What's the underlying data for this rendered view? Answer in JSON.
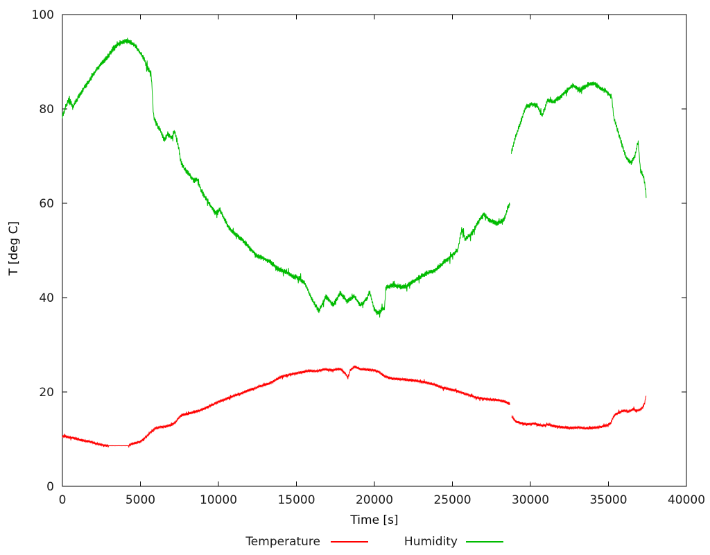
{
  "chart_data": {
    "type": "line",
    "title": "",
    "xlabel": "Time [s]",
    "ylabel": "T [deg C]",
    "xlim": [
      0,
      40000
    ],
    "ylim": [
      0,
      100
    ],
    "x_ticks": [
      0,
      5000,
      10000,
      15000,
      20000,
      25000,
      30000,
      35000,
      40000
    ],
    "y_ticks": [
      0,
      20,
      40,
      60,
      80,
      100
    ],
    "grid": false,
    "legend_position": "below-center",
    "axis_color": "#000000",
    "series": [
      {
        "name": "Temperature",
        "color": "#ff0000",
        "noise": 0.3,
        "segments": [
          {
            "quiet": [
              2950,
              4250
            ],
            "points": [
              [
                0,
                10.6
              ],
              [
                300,
                10.5
              ],
              [
                600,
                10.3
              ],
              [
                900,
                10.1
              ],
              [
                1200,
                9.8
              ],
              [
                1500,
                9.6
              ],
              [
                1800,
                9.4
              ],
              [
                2100,
                9.1
              ],
              [
                2400,
                8.9
              ],
              [
                2700,
                8.7
              ],
              [
                2950,
                8.6
              ],
              [
                4250,
                8.6
              ],
              [
                4450,
                9.0
              ],
              [
                4700,
                9.2
              ],
              [
                4950,
                9.4
              ],
              [
                5200,
                10.0
              ],
              [
                5450,
                10.8
              ],
              [
                5700,
                11.6
              ],
              [
                5950,
                12.3
              ],
              [
                6200,
                12.5
              ],
              [
                6600,
                12.7
              ],
              [
                7000,
                13.0
              ],
              [
                7250,
                13.6
              ],
              [
                7450,
                14.5
              ],
              [
                7650,
                15.1
              ],
              [
                8000,
                15.3
              ],
              [
                8500,
                15.8
              ],
              [
                9000,
                16.3
              ],
              [
                9500,
                17.1
              ],
              [
                10000,
                17.9
              ],
              [
                10400,
                18.4
              ],
              [
                11000,
                19.2
              ],
              [
                11500,
                19.8
              ],
              [
                12000,
                20.4
              ],
              [
                12700,
                21.2
              ],
              [
                13400,
                22.0
              ],
              [
                14000,
                23.2
              ],
              [
                14600,
                23.7
              ],
              [
                15200,
                24.1
              ],
              [
                15800,
                24.5
              ],
              [
                16300,
                24.4
              ],
              [
                16800,
                24.8
              ],
              [
                17300,
                24.6
              ],
              [
                17800,
                24.9
              ],
              [
                18150,
                23.9
              ],
              [
                18300,
                22.9
              ],
              [
                18450,
                24.6
              ],
              [
                18750,
                25.4
              ],
              [
                19100,
                24.8
              ],
              [
                19600,
                24.7
              ],
              [
                20000,
                24.6
              ],
              [
                20300,
                24.2
              ],
              [
                20700,
                23.2
              ],
              [
                21200,
                22.8
              ],
              [
                22000,
                22.6
              ],
              [
                22600,
                22.4
              ],
              [
                23100,
                22.1
              ],
              [
                23700,
                21.7
              ],
              [
                24300,
                21.0
              ],
              [
                24800,
                20.6
              ],
              [
                25300,
                20.2
              ],
              [
                25900,
                19.5
              ],
              [
                26400,
                19.0
              ],
              [
                26900,
                18.6
              ],
              [
                27400,
                18.4
              ],
              [
                27900,
                18.3
              ],
              [
                28300,
                18.0
              ],
              [
                28700,
                17.5
              ]
            ]
          },
          {
            "points": [
              [
                28800,
                14.8
              ],
              [
                29050,
                13.8
              ],
              [
                29350,
                13.4
              ],
              [
                29800,
                13.1
              ],
              [
                30250,
                13.3
              ],
              [
                30700,
                12.9
              ],
              [
                31150,
                13.1
              ],
              [
                31600,
                12.7
              ],
              [
                32050,
                12.5
              ],
              [
                32550,
                12.4
              ],
              [
                33050,
                12.5
              ],
              [
                33550,
                12.3
              ],
              [
                34050,
                12.4
              ],
              [
                34550,
                12.6
              ],
              [
                34950,
                13.0
              ],
              [
                35150,
                13.4
              ],
              [
                35300,
                14.6
              ],
              [
                35450,
                15.3
              ],
              [
                35700,
                15.6
              ],
              [
                36000,
                16.1
              ],
              [
                36300,
                15.8
              ],
              [
                36600,
                16.4
              ],
              [
                36800,
                16.0
              ],
              [
                37050,
                16.3
              ],
              [
                37200,
                16.7
              ],
              [
                37320,
                17.6
              ],
              [
                37420,
                19.2
              ]
            ]
          }
        ]
      },
      {
        "name": "Humidity",
        "color": "#00bb00",
        "noise": 0.6,
        "segments": [
          {
            "points": [
              [
                0,
                78.5
              ],
              [
                250,
                80.8
              ],
              [
                450,
                82.2
              ],
              [
                650,
                80.3
              ],
              [
                900,
                81.8
              ],
              [
                1300,
                84.0
              ],
              [
                1800,
                86.3
              ],
              [
                2200,
                88.4
              ],
              [
                2800,
                90.7
              ],
              [
                3300,
                92.8
              ],
              [
                3700,
                94.0
              ],
              [
                4100,
                94.4
              ],
              [
                4600,
                93.7
              ],
              [
                4900,
                92.3
              ],
              [
                5250,
                90.5
              ],
              [
                5450,
                88.8
              ],
              [
                5680,
                87.4
              ],
              [
                5760,
                84.0
              ],
              [
                5840,
                78.5
              ],
              [
                6000,
                77.0
              ],
              [
                6250,
                75.6
              ],
              [
                6550,
                73.3
              ],
              [
                6750,
                74.8
              ],
              [
                7000,
                73.8
              ],
              [
                7200,
                75.5
              ],
              [
                7350,
                73.0
              ],
              [
                7480,
                71.3
              ],
              [
                7580,
                69.0
              ],
              [
                7800,
                67.3
              ],
              [
                8100,
                66.2
              ],
              [
                8450,
                64.8
              ],
              [
                8650,
                65.0
              ],
              [
                8950,
                62.3
              ],
              [
                9350,
                60.3
              ],
              [
                9800,
                57.9
              ],
              [
                10100,
                58.6
              ],
              [
                10400,
                56.5
              ],
              [
                10700,
                54.7
              ],
              [
                11100,
                53.4
              ],
              [
                11550,
                52.3
              ],
              [
                12000,
                50.5
              ],
              [
                12450,
                49.0
              ],
              [
                12900,
                48.3
              ],
              [
                13350,
                47.5
              ],
              [
                13800,
                46.1
              ],
              [
                14250,
                45.6
              ],
              [
                14700,
                44.6
              ],
              [
                15150,
                44.2
              ],
              [
                15550,
                43.0
              ],
              [
                16000,
                39.5
              ],
              [
                16450,
                37.2
              ],
              [
                16900,
                40.2
              ],
              [
                17350,
                38.4
              ],
              [
                17800,
                41.0
              ],
              [
                18250,
                39.2
              ],
              [
                18700,
                40.3
              ],
              [
                19100,
                38.4
              ],
              [
                19500,
                39.7
              ],
              [
                19700,
                41.3
              ],
              [
                19950,
                37.8
              ],
              [
                20200,
                36.6
              ],
              [
                20450,
                37.4
              ],
              [
                20650,
                37.7
              ],
              [
                20730,
                42.0
              ],
              [
                21100,
                42.6
              ],
              [
                21700,
                42.3
              ],
              [
                22100,
                42.5
              ],
              [
                22650,
                43.8
              ],
              [
                23250,
                45.0
              ],
              [
                23850,
                45.7
              ],
              [
                24450,
                47.5
              ],
              [
                24900,
                48.7
              ],
              [
                25350,
                50.2
              ],
              [
                25600,
                54.6
              ],
              [
                25800,
                52.4
              ],
              [
                26250,
                53.6
              ],
              [
                26650,
                56.0
              ],
              [
                27000,
                57.7
              ],
              [
                27400,
                56.4
              ],
              [
                27900,
                55.7
              ],
              [
                28300,
                56.5
              ],
              [
                28700,
                60.3
              ]
            ]
          },
          {
            "points": [
              [
                28780,
                70.8
              ],
              [
                29000,
                73.5
              ],
              [
                29300,
                76.5
              ],
              [
                29700,
                80.4
              ],
              [
                30100,
                81.0
              ],
              [
                30450,
                80.6
              ],
              [
                30750,
                78.5
              ],
              [
                31100,
                81.9
              ],
              [
                31450,
                81.4
              ],
              [
                31850,
                82.4
              ],
              [
                32250,
                83.6
              ],
              [
                32700,
                85.0
              ],
              [
                33200,
                84.0
              ],
              [
                33700,
                85.2
              ],
              [
                34100,
                85.4
              ],
              [
                34500,
                84.4
              ],
              [
                34900,
                83.6
              ],
              [
                35200,
                82.6
              ],
              [
                35350,
                78.2
              ],
              [
                35550,
                75.8
              ],
              [
                35850,
                72.6
              ],
              [
                36150,
                69.6
              ],
              [
                36450,
                68.6
              ],
              [
                36700,
                70.1
              ],
              [
                36900,
                73.2
              ],
              [
                37050,
                67.0
              ],
              [
                37250,
                65.6
              ],
              [
                37350,
                64.0
              ],
              [
                37420,
                61.5
              ]
            ]
          }
        ]
      }
    ]
  }
}
